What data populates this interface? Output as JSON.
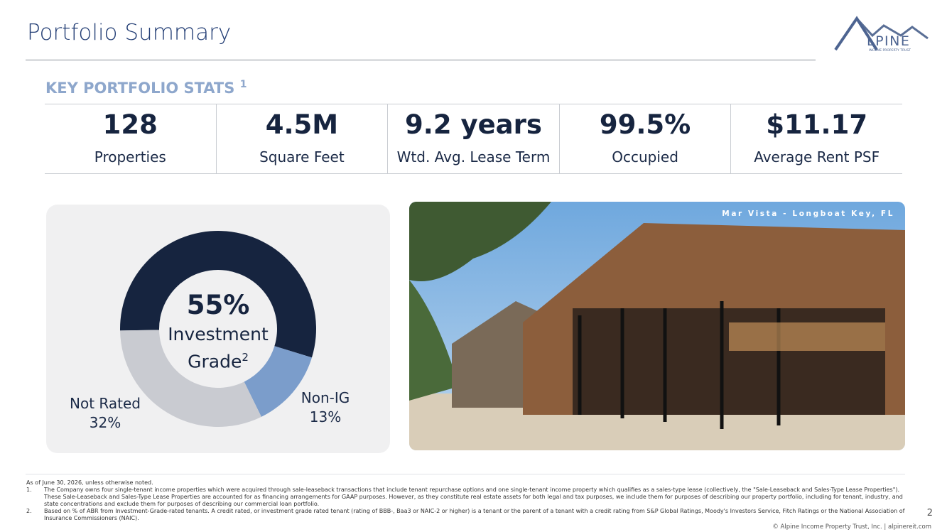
{
  "title": "Portfolio Summary",
  "logo": {
    "letter": "A",
    "name": "LPINE",
    "tagline": "INCOME PROPERTY TRUST"
  },
  "stats_heading": {
    "text": "KEY PORTFOLIO STATS",
    "note": "1"
  },
  "stats": [
    {
      "value": "128",
      "label": "Properties"
    },
    {
      "value": "4.5M",
      "label": "Square Feet"
    },
    {
      "value": "9.2 years",
      "label": "Wtd. Avg. Lease Term"
    },
    {
      "value": "99.5%",
      "label": "Occupied"
    },
    {
      "value": "$11.17",
      "label": "Average Rent PSF"
    }
  ],
  "chart_data": {
    "type": "donut",
    "categories": [
      "Investment Grade",
      "Non-IG",
      "Not Rated"
    ],
    "category_note": "2",
    "values": [
      55,
      13,
      32
    ],
    "value_labels": [
      "55%",
      "13%",
      "32%"
    ],
    "colors": [
      "#16243f",
      "#7b9dcb",
      "#c9cbd1"
    ]
  },
  "photo_caption": "Mar Vista - Longboat Key, FL",
  "footnotes": {
    "intro": "As of June 30, 2026, unless otherwise noted.",
    "items": [
      {
        "marker": "1.",
        "text": "The Company owns four single-tenant income properties which were acquired through sale-leaseback transactions that include tenant repurchase options and one single-tenant income property which qualifies as a sales-type lease (collectively, the \"Sale-Leaseback and Sales-Type Lease Properties\"). These Sale-Leaseback and Sales-Type Lease Properties are accounted for as financing arrangements for GAAP purposes. However, as they constitute real estate assets for both legal and tax purposes, we include them for purposes of describing our property portfolio, including for tenant, industry, and state concentrations and exclude them for purposes of describing our commercial loan portfolio."
      },
      {
        "marker": "2.",
        "text": "Based on % of ABR from Investment-Grade-rated tenants. A credit rated, or investment grade rated tenant (rating of BBB-, Baa3 or NAIC-2 or higher) is a tenant or the parent of a tenant with a credit rating from S&P Global Ratings, Moody's Investors Service, Fitch Ratings or the National Association of Insurance Commissioners (NAIC)."
      }
    ]
  },
  "page_number": "2",
  "copyright": "© Alpine Income Property Trust, Inc.  |  alpinereit.com"
}
